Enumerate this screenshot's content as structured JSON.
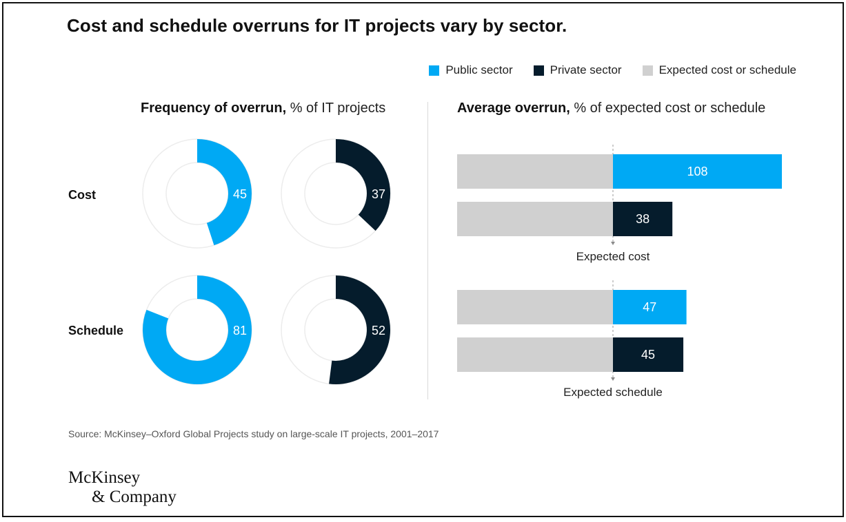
{
  "title": "Cost and schedule overruns for IT projects vary by sector.",
  "colors": {
    "public": "#00a9f4",
    "private": "#051c2c",
    "expected": "#d0d0d0",
    "track": "#ececec"
  },
  "legend": [
    {
      "label": "Public sector",
      "color": "#00a9f4"
    },
    {
      "label": "Private sector",
      "color": "#051c2c"
    },
    {
      "label": "Expected cost or schedule",
      "color": "#d0d0d0"
    }
  ],
  "frequency_panel": {
    "title_bold": "Frequency of overrun,",
    "title_rest": " % of IT projects"
  },
  "average_panel": {
    "title_bold": "Average overrun,",
    "title_rest": " % of expected cost or schedule"
  },
  "rows": [
    {
      "label": "Cost"
    },
    {
      "label": "Schedule"
    }
  ],
  "chart_data": [
    {
      "type": "pie",
      "title": "Frequency of overrun, % of IT projects",
      "subtype": "donut",
      "groups": [
        "Cost",
        "Schedule"
      ],
      "series": [
        {
          "name": "Public sector",
          "values": [
            45,
            81
          ]
        },
        {
          "name": "Private sector",
          "values": [
            37,
            52
          ]
        }
      ],
      "unit": "%"
    },
    {
      "type": "bar",
      "title": "Average overrun, % of expected cost or schedule",
      "orientation": "horizontal",
      "categories": [
        "Cost",
        "Schedule"
      ],
      "baseline_label": [
        "Expected cost",
        "Expected schedule"
      ],
      "baseline": 100,
      "series": [
        {
          "name": "Public sector",
          "values": [
            108,
            47
          ]
        },
        {
          "name": "Private sector",
          "values": [
            38,
            45
          ]
        }
      ],
      "unit": "%"
    }
  ],
  "source": "Source: McKinsey–Oxford Global Projects study on large-scale IT projects, 2001–2017",
  "logo": {
    "line1": "McKinsey",
    "line2": "& Company"
  }
}
